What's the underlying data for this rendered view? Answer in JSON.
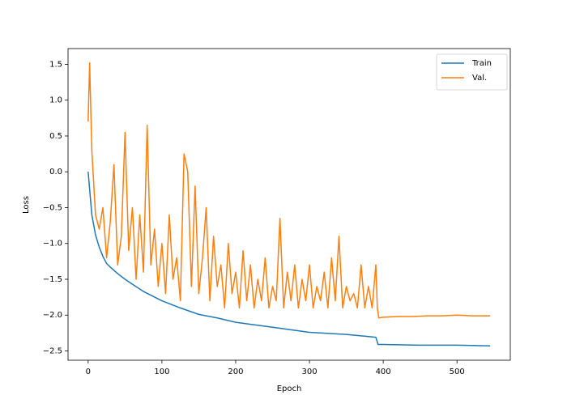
{
  "chart_data": {
    "type": "line",
    "xlabel": "Epoch",
    "ylabel": "Loss",
    "xlim": [
      -27.25,
      572.25
    ],
    "xticks": [
      0,
      100,
      200,
      300,
      400,
      500
    ],
    "ylim": [
      -2.63,
      1.72
    ],
    "yticks": [
      {
        "value": -2.5,
        "label": "−2.5"
      },
      {
        "value": -2.0,
        "label": "−2.0"
      },
      {
        "value": -1.5,
        "label": "−1.5"
      },
      {
        "value": -1.0,
        "label": "−1.0"
      },
      {
        "value": -0.5,
        "label": "−0.5"
      },
      {
        "value": 0.0,
        "label": "0.0"
      },
      0.5,
      {
        "value": 1.0,
        "label": "1.0"
      },
      1.5
    ],
    "legend": "upper right",
    "series": [
      {
        "name": "Train",
        "color": "#1f77b4",
        "x": [
          0,
          5,
          10,
          15,
          20,
          25,
          30,
          40,
          50,
          60,
          75,
          100,
          125,
          150,
          175,
          200,
          250,
          300,
          350,
          390,
          393,
          400,
          450,
          500,
          545
        ],
        "values": [
          0,
          -0.6,
          -0.88,
          -1.05,
          -1.18,
          -1.28,
          -1.33,
          -1.42,
          -1.5,
          -1.57,
          -1.67,
          -1.8,
          -1.9,
          -1.99,
          -2.04,
          -2.1,
          -2.17,
          -2.24,
          -2.27,
          -2.31,
          -2.41,
          -2.41,
          -2.42,
          -2.42,
          -2.43
        ]
      },
      {
        "name": "Val.",
        "color": "#ff7f0e",
        "x": [
          0,
          2,
          5,
          10,
          15,
          20,
          25,
          30,
          35,
          40,
          45,
          50,
          55,
          60,
          65,
          70,
          75,
          80,
          85,
          90,
          95,
          100,
          105,
          110,
          115,
          120,
          125,
          130,
          135,
          140,
          145,
          150,
          155,
          160,
          165,
          170,
          175,
          180,
          185,
          190,
          195,
          200,
          205,
          210,
          215,
          220,
          225,
          230,
          235,
          240,
          245,
          250,
          255,
          260,
          265,
          270,
          275,
          280,
          285,
          290,
          295,
          300,
          305,
          310,
          315,
          320,
          325,
          330,
          335,
          340,
          345,
          350,
          355,
          360,
          365,
          370,
          375,
          380,
          385,
          390,
          392,
          394,
          400,
          420,
          440,
          460,
          480,
          500,
          520,
          545
        ],
        "values": [
          0.7,
          1.52,
          0.3,
          -0.6,
          -0.8,
          -0.5,
          -1.2,
          -0.7,
          0.1,
          -1.3,
          -0.9,
          0.55,
          -1.1,
          -0.5,
          -1.5,
          -0.6,
          -1.4,
          0.65,
          -1.3,
          -0.8,
          -1.6,
          -1.0,
          -1.7,
          -0.6,
          -1.5,
          -1.2,
          -1.8,
          0.25,
          0.0,
          -1.6,
          -0.2,
          -1.7,
          -1.2,
          -0.5,
          -1.8,
          -0.9,
          -1.6,
          -1.3,
          -1.9,
          -1.0,
          -1.7,
          -1.4,
          -1.9,
          -1.1,
          -1.8,
          -1.3,
          -1.9,
          -1.5,
          -1.8,
          -1.2,
          -1.9,
          -1.6,
          -1.8,
          -0.65,
          -1.9,
          -1.4,
          -1.8,
          -1.3,
          -1.9,
          -1.5,
          -1.8,
          -1.3,
          -1.9,
          -1.6,
          -1.8,
          -1.4,
          -1.9,
          -1.2,
          -1.8,
          -0.9,
          -1.9,
          -1.6,
          -1.8,
          -1.7,
          -1.9,
          -1.3,
          -1.9,
          -1.6,
          -1.9,
          -1.3,
          -1.9,
          -2.04,
          -2.03,
          -2.02,
          -2.02,
          -2.01,
          -2.01,
          -2.0,
          -2.01,
          -2.01
        ]
      }
    ]
  }
}
